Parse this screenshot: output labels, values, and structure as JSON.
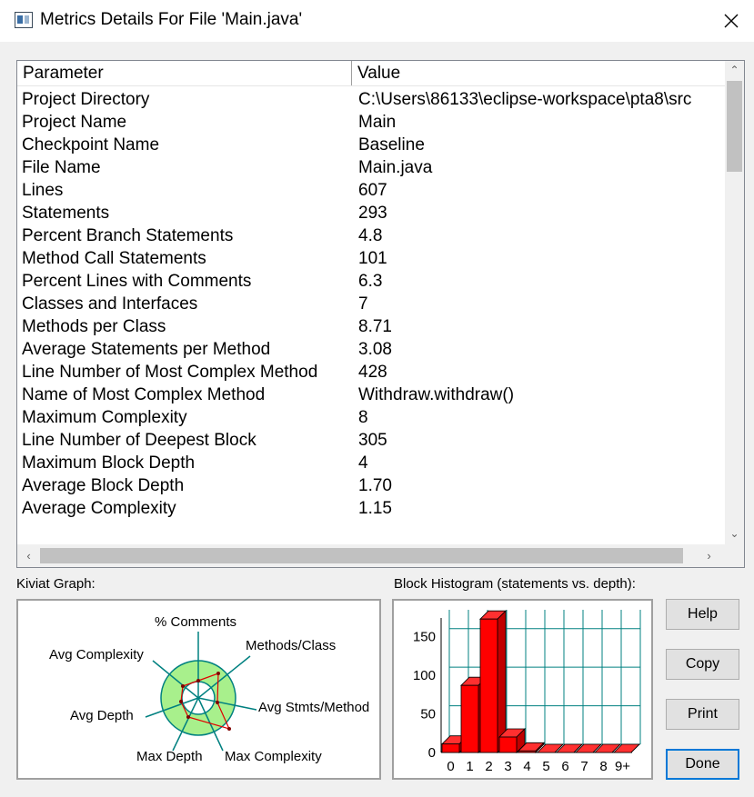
{
  "window": {
    "title": "Metrics Details For File 'Main.java'"
  },
  "table": {
    "headers": {
      "parameter": "Parameter",
      "value": "Value"
    },
    "rows": [
      {
        "parameter": "Project Directory",
        "value": "C:\\Users\\86133\\eclipse-workspace\\pta8\\src"
      },
      {
        "parameter": "Project Name",
        "value": "Main"
      },
      {
        "parameter": "Checkpoint Name",
        "value": "Baseline"
      },
      {
        "parameter": "File Name",
        "value": "Main.java"
      },
      {
        "parameter": "Lines",
        "value": "607"
      },
      {
        "parameter": "Statements",
        "value": "293"
      },
      {
        "parameter": "Percent Branch Statements",
        "value": "4.8"
      },
      {
        "parameter": "Method Call Statements",
        "value": "101"
      },
      {
        "parameter": "Percent Lines with Comments",
        "value": "6.3"
      },
      {
        "parameter": "Classes and Interfaces",
        "value": "7"
      },
      {
        "parameter": "Methods per Class",
        "value": "8.71"
      },
      {
        "parameter": "Average Statements per Method",
        "value": "3.08"
      },
      {
        "parameter": "Line Number of Most Complex Method",
        "value": "428"
      },
      {
        "parameter": "Name of Most Complex Method",
        "value": "Withdraw.withdraw()"
      },
      {
        "parameter": "Maximum Complexity",
        "value": "8"
      },
      {
        "parameter": "Line Number of Deepest Block",
        "value": "305"
      },
      {
        "parameter": "Maximum Block Depth",
        "value": "4"
      },
      {
        "parameter": "Average Block Depth",
        "value": "1.70"
      },
      {
        "parameter": "Average Complexity",
        "value": "1.15"
      }
    ]
  },
  "kiviat": {
    "title": "Kiviat Graph:",
    "axes": {
      "comments": "% Comments",
      "methods_class": "Methods/Class",
      "avg_stmts": "Avg Stmts/Method",
      "max_complexity": "Max Complexity",
      "max_depth": "Max Depth",
      "avg_depth": "Avg Depth",
      "avg_complexity": "Avg Complexity"
    },
    "ring_color": "#a8f08c",
    "line_color": "#e00000"
  },
  "chart_data": {
    "type": "bar",
    "title": "Block Histogram (statements vs. depth):",
    "categories": [
      "0",
      "1",
      "2",
      "3",
      "4",
      "5",
      "6",
      "7",
      "8",
      "9+"
    ],
    "values": [
      11,
      87,
      173,
      20,
      2,
      0,
      0,
      0,
      0,
      0
    ],
    "y_ticks": [
      "0",
      "50",
      "100",
      "150"
    ],
    "ylim": [
      0,
      185
    ],
    "bar_color": "#ff0000",
    "grid_color": "#008080"
  },
  "buttons": {
    "help": "Help",
    "copy": "Copy",
    "print": "Print",
    "done": "Done"
  },
  "icons": {
    "close": "close-icon",
    "app": "app-icon"
  }
}
